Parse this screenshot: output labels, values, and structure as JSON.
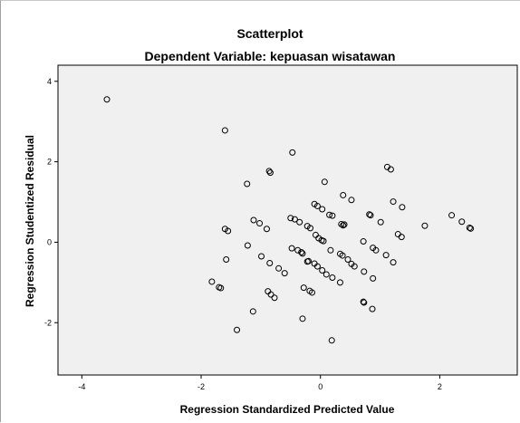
{
  "chart_data": {
    "type": "scatter",
    "title": "Scatterplot",
    "subtitle": "Dependent Variable: kepuasan wisatawan",
    "xlabel": "Regression Standardized Predicted Value",
    "ylabel": "Regression Studentized Residual",
    "xlim": [
      -4.4,
      3.3
    ],
    "ylim": [
      -3.3,
      4.4
    ],
    "xticks": [
      -4,
      -2,
      0,
      2
    ],
    "yticks": [
      -2,
      0,
      2,
      4
    ],
    "xtick_labels": [
      "-4",
      "-2",
      "0",
      "2"
    ],
    "ytick_labels": [
      "-2",
      "0",
      "2",
      "4"
    ],
    "grid": false,
    "plot_background": "#f0f0f0",
    "marker_color": "#000000",
    "points": [
      {
        "x": -3.58,
        "y": 3.55
      },
      {
        "x": -1.6,
        "y": 2.78
      },
      {
        "x": -0.47,
        "y": 2.23
      },
      {
        "x": 1.12,
        "y": 1.87
      },
      {
        "x": 1.18,
        "y": 1.81
      },
      {
        "x": -0.86,
        "y": 1.77
      },
      {
        "x": -0.84,
        "y": 1.73
      },
      {
        "x": 0.07,
        "y": 1.5
      },
      {
        "x": -1.23,
        "y": 1.45
      },
      {
        "x": 0.38,
        "y": 1.17
      },
      {
        "x": 0.52,
        "y": 1.05
      },
      {
        "x": 1.22,
        "y": 1.01
      },
      {
        "x": 1.37,
        "y": 0.87
      },
      {
        "x": -0.1,
        "y": 0.95
      },
      {
        "x": -0.05,
        "y": 0.9
      },
      {
        "x": 0.03,
        "y": 0.82
      },
      {
        "x": 0.15,
        "y": 0.68
      },
      {
        "x": 0.2,
        "y": 0.66
      },
      {
        "x": 0.82,
        "y": 0.69
      },
      {
        "x": 0.84,
        "y": 0.67
      },
      {
        "x": 1.01,
        "y": 0.5
      },
      {
        "x": -1.12,
        "y": 0.55
      },
      {
        "x": -1.02,
        "y": 0.47
      },
      {
        "x": -0.5,
        "y": 0.6
      },
      {
        "x": -0.43,
        "y": 0.57
      },
      {
        "x": -0.35,
        "y": 0.5
      },
      {
        "x": -0.22,
        "y": 0.4
      },
      {
        "x": -0.17,
        "y": 0.35
      },
      {
        "x": 0.35,
        "y": 0.45
      },
      {
        "x": 0.38,
        "y": 0.42
      },
      {
        "x": 0.4,
        "y": 0.44
      },
      {
        "x": -1.6,
        "y": 0.33
      },
      {
        "x": -1.55,
        "y": 0.28
      },
      {
        "x": -0.9,
        "y": 0.33
      },
      {
        "x": -0.08,
        "y": 0.18
      },
      {
        "x": -0.03,
        "y": 0.1
      },
      {
        "x": 0.02,
        "y": 0.05
      },
      {
        "x": 0.05,
        "y": 0.03
      },
      {
        "x": 1.75,
        "y": 0.41
      },
      {
        "x": 2.2,
        "y": 0.67
      },
      {
        "x": 2.37,
        "y": 0.51
      },
      {
        "x": 2.5,
        "y": 0.36
      },
      {
        "x": 2.52,
        "y": 0.34
      },
      {
        "x": 1.3,
        "y": 0.2
      },
      {
        "x": 1.36,
        "y": 0.13
      },
      {
        "x": 0.72,
        "y": 0.02
      },
      {
        "x": -1.22,
        "y": -0.08
      },
      {
        "x": -0.48,
        "y": -0.15
      },
      {
        "x": -0.38,
        "y": -0.2
      },
      {
        "x": -0.32,
        "y": -0.25
      },
      {
        "x": -0.3,
        "y": -0.28
      },
      {
        "x": 0.17,
        "y": -0.2
      },
      {
        "x": 0.33,
        "y": -0.29
      },
      {
        "x": 0.37,
        "y": -0.33
      },
      {
        "x": 0.46,
        "y": -0.43
      },
      {
        "x": 0.88,
        "y": -0.14
      },
      {
        "x": 0.93,
        "y": -0.2
      },
      {
        "x": 1.22,
        "y": -0.5
      },
      {
        "x": 1.1,
        "y": -0.32
      },
      {
        "x": -1.58,
        "y": -0.43
      },
      {
        "x": -0.99,
        "y": -0.35
      },
      {
        "x": -0.85,
        "y": -0.52
      },
      {
        "x": -0.7,
        "y": -0.65
      },
      {
        "x": -0.6,
        "y": -0.77
      },
      {
        "x": -0.22,
        "y": -0.48
      },
      {
        "x": -0.2,
        "y": -0.47
      },
      {
        "x": -0.1,
        "y": -0.53
      },
      {
        "x": -0.05,
        "y": -0.6
      },
      {
        "x": 0.03,
        "y": -0.7
      },
      {
        "x": 0.1,
        "y": -0.8
      },
      {
        "x": 0.2,
        "y": -0.88
      },
      {
        "x": 0.52,
        "y": -0.54
      },
      {
        "x": 0.57,
        "y": -0.6
      },
      {
        "x": 0.73,
        "y": -0.73
      },
      {
        "x": 0.88,
        "y": -0.9
      },
      {
        "x": -1.82,
        "y": -0.98
      },
      {
        "x": -1.7,
        "y": -1.12
      },
      {
        "x": -1.67,
        "y": -1.14
      },
      {
        "x": -0.88,
        "y": -1.22
      },
      {
        "x": -0.83,
        "y": -1.3
      },
      {
        "x": -0.77,
        "y": -1.38
      },
      {
        "x": -0.28,
        "y": -1.13
      },
      {
        "x": -0.18,
        "y": -1.21
      },
      {
        "x": -0.14,
        "y": -1.25
      },
      {
        "x": 0.33,
        "y": -1.0
      },
      {
        "x": 0.72,
        "y": -1.48
      },
      {
        "x": 0.73,
        "y": -1.5
      },
      {
        "x": 0.87,
        "y": -1.66
      },
      {
        "x": -1.13,
        "y": -1.72
      },
      {
        "x": -0.3,
        "y": -1.9
      },
      {
        "x": -1.4,
        "y": -2.18
      },
      {
        "x": 0.19,
        "y": -2.44
      }
    ]
  }
}
